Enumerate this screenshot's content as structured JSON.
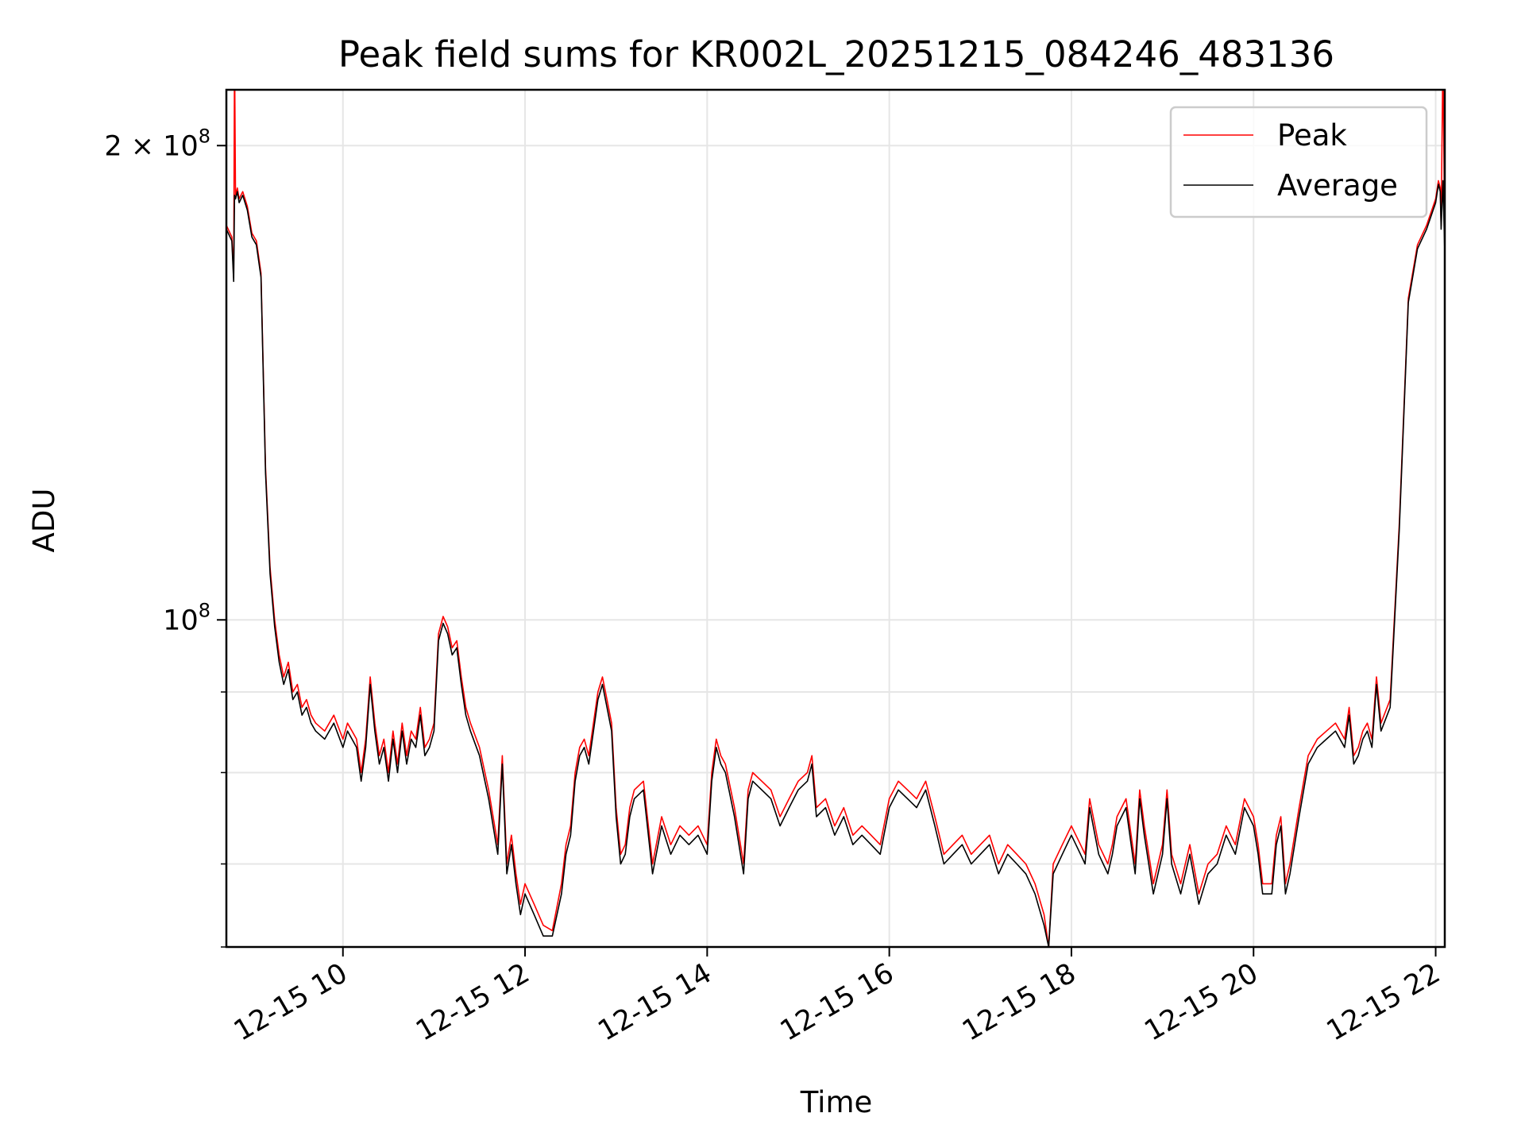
{
  "chart_data": {
    "type": "line",
    "title": "Peak field sums for KR002L_20251215_084246_483136",
    "xlabel": "Time",
    "ylabel": "ADU",
    "x_range": [
      8.72,
      22.1
    ],
    "x_ticks": [
      {
        "value": 10,
        "label": "12-15 10"
      },
      {
        "value": 12,
        "label": "12-15 12"
      },
      {
        "value": 14,
        "label": "12-15 14"
      },
      {
        "value": 16,
        "label": "12-15 16"
      },
      {
        "value": 18,
        "label": "12-15 18"
      },
      {
        "value": 20,
        "label": "12-15 20"
      },
      {
        "value": 22,
        "label": "12-15 22"
      }
    ],
    "y_scale": "log",
    "y_range": [
      62000000,
      217000000
    ],
    "y_major_ticks": [
      {
        "value": 100000000,
        "base": "10",
        "exp": "8",
        "mult": ""
      },
      {
        "value": 200000000,
        "base": "10",
        "exp": "8",
        "mult": "2"
      }
    ],
    "y_minor_ticks": [
      70000000,
      80000000,
      90000000,
      300000000
    ],
    "grid": true,
    "legend_position": "top-right",
    "series": [
      {
        "name": "Peak",
        "color": "#ff0000",
        "x": [
          8.72,
          8.78,
          8.8,
          8.81,
          8.82,
          8.84,
          8.86,
          8.9,
          8.95,
          9.0,
          9.05,
          9.1,
          9.15,
          9.2,
          9.25,
          9.3,
          9.35,
          9.4,
          9.45,
          9.5,
          9.55,
          9.6,
          9.65,
          9.7,
          9.8,
          9.9,
          10.0,
          10.05,
          10.1,
          10.15,
          10.2,
          10.25,
          10.3,
          10.35,
          10.4,
          10.45,
          10.5,
          10.55,
          10.6,
          10.65,
          10.7,
          10.75,
          10.8,
          10.85,
          10.9,
          10.95,
          11.0,
          11.05,
          11.1,
          11.15,
          11.2,
          11.25,
          11.3,
          11.35,
          11.4,
          11.5,
          11.6,
          11.7,
          11.75,
          11.8,
          11.85,
          11.9,
          11.95,
          12.0,
          12.1,
          12.2,
          12.3,
          12.4,
          12.45,
          12.5,
          12.55,
          12.6,
          12.65,
          12.7,
          12.8,
          12.85,
          12.9,
          12.95,
          13.0,
          13.05,
          13.1,
          13.15,
          13.2,
          13.3,
          13.4,
          13.5,
          13.6,
          13.7,
          13.8,
          13.9,
          14.0,
          14.05,
          14.1,
          14.15,
          14.2,
          14.3,
          14.4,
          14.45,
          14.5,
          14.6,
          14.7,
          14.8,
          14.9,
          15.0,
          15.1,
          15.15,
          15.2,
          15.3,
          15.4,
          15.5,
          15.6,
          15.7,
          15.8,
          15.9,
          16.0,
          16.1,
          16.2,
          16.3,
          16.4,
          16.5,
          16.6,
          16.7,
          16.8,
          16.9,
          17.0,
          17.1,
          17.2,
          17.3,
          17.4,
          17.5,
          17.6,
          17.7,
          17.75,
          17.8,
          17.9,
          18.0,
          18.1,
          18.15,
          18.2,
          18.3,
          18.4,
          18.45,
          18.5,
          18.6,
          18.7,
          18.75,
          18.8,
          18.9,
          19.0,
          19.05,
          19.1,
          19.2,
          19.3,
          19.4,
          19.5,
          19.6,
          19.7,
          19.8,
          19.9,
          20.0,
          20.05,
          20.1,
          20.2,
          20.25,
          20.3,
          20.35,
          20.4,
          20.5,
          20.6,
          20.7,
          20.8,
          20.9,
          21.0,
          21.05,
          21.1,
          21.15,
          21.2,
          21.25,
          21.3,
          21.35,
          21.4,
          21.5,
          21.6,
          21.7,
          21.8,
          21.9,
          22.0,
          22.03,
          22.05,
          22.06,
          22.08,
          22.1
        ],
        "y": [
          178000000,
          175000000,
          165000000,
          230000000,
          186000000,
          188000000,
          185000000,
          187000000,
          183000000,
          176000000,
          174000000,
          166000000,
          125000000,
          108000000,
          100000000,
          95000000,
          92000000,
          94000000,
          90000000,
          91000000,
          88000000,
          89000000,
          87000000,
          86000000,
          85000000,
          87000000,
          84000000,
          86000000,
          85000000,
          84000000,
          80000000,
          84000000,
          92000000,
          86000000,
          82000000,
          84000000,
          80000000,
          85000000,
          81000000,
          86000000,
          82000000,
          85000000,
          84000000,
          88000000,
          83000000,
          84000000,
          86000000,
          98000000,
          100500000,
          99000000,
          96000000,
          97000000,
          92000000,
          88000000,
          86000000,
          83000000,
          78000000,
          72000000,
          82000000,
          70000000,
          73000000,
          69000000,
          66000000,
          68000000,
          66000000,
          64000000,
          63500000,
          68000000,
          72000000,
          74000000,
          80000000,
          83000000,
          84000000,
          82000000,
          90000000,
          92000000,
          89000000,
          86000000,
          76000000,
          71000000,
          72000000,
          76000000,
          78000000,
          79000000,
          70000000,
          75000000,
          72000000,
          74000000,
          73000000,
          74000000,
          72000000,
          80000000,
          84000000,
          82000000,
          81000000,
          76000000,
          70000000,
          78000000,
          80000000,
          79000000,
          78000000,
          75000000,
          77000000,
          79000000,
          80000000,
          82000000,
          76000000,
          77000000,
          74000000,
          76000000,
          73000000,
          74000000,
          73000000,
          72000000,
          77000000,
          79000000,
          78000000,
          77000000,
          79000000,
          75000000,
          71000000,
          72000000,
          73000000,
          71000000,
          72000000,
          73000000,
          70000000,
          72000000,
          71000000,
          70000000,
          68000000,
          65000000,
          62000000,
          70000000,
          72000000,
          74000000,
          72000000,
          71000000,
          77000000,
          72000000,
          70000000,
          72000000,
          75000000,
          77000000,
          70000000,
          78000000,
          74000000,
          68000000,
          72000000,
          78000000,
          71000000,
          68000000,
          72000000,
          67000000,
          70000000,
          71000000,
          74000000,
          72000000,
          77000000,
          75000000,
          72000000,
          68000000,
          68000000,
          73000000,
          75000000,
          68000000,
          70000000,
          76000000,
          82000000,
          84000000,
          85000000,
          86000000,
          84000000,
          88000000,
          82000000,
          83000000,
          85000000,
          86000000,
          84000000,
          92000000,
          86000000,
          89000000,
          115000000,
          160000000,
          173000000,
          178000000,
          185000000,
          190000000,
          188000000,
          178000000,
          230000000,
          172000000
        ]
      },
      {
        "name": "Average",
        "color": "#000000",
        "x": [
          8.72,
          8.78,
          8.8,
          8.81,
          8.82,
          8.84,
          8.86,
          8.9,
          8.95,
          9.0,
          9.05,
          9.1,
          9.15,
          9.2,
          9.25,
          9.3,
          9.35,
          9.4,
          9.45,
          9.5,
          9.55,
          9.6,
          9.65,
          9.7,
          9.8,
          9.9,
          10.0,
          10.05,
          10.1,
          10.15,
          10.2,
          10.25,
          10.3,
          10.35,
          10.4,
          10.45,
          10.5,
          10.55,
          10.6,
          10.65,
          10.7,
          10.75,
          10.8,
          10.85,
          10.9,
          10.95,
          11.0,
          11.05,
          11.1,
          11.15,
          11.2,
          11.25,
          11.3,
          11.35,
          11.4,
          11.5,
          11.6,
          11.7,
          11.75,
          11.8,
          11.85,
          11.9,
          11.95,
          12.0,
          12.1,
          12.2,
          12.3,
          12.4,
          12.45,
          12.5,
          12.55,
          12.6,
          12.65,
          12.7,
          12.8,
          12.85,
          12.9,
          12.95,
          13.0,
          13.05,
          13.1,
          13.15,
          13.2,
          13.3,
          13.4,
          13.5,
          13.6,
          13.7,
          13.8,
          13.9,
          14.0,
          14.05,
          14.1,
          14.15,
          14.2,
          14.3,
          14.4,
          14.45,
          14.5,
          14.6,
          14.7,
          14.8,
          14.9,
          15.0,
          15.1,
          15.15,
          15.2,
          15.3,
          15.4,
          15.5,
          15.6,
          15.7,
          15.8,
          15.9,
          16.0,
          16.1,
          16.2,
          16.3,
          16.4,
          16.5,
          16.6,
          16.7,
          16.8,
          16.9,
          17.0,
          17.1,
          17.2,
          17.3,
          17.4,
          17.5,
          17.6,
          17.7,
          17.75,
          17.8,
          17.9,
          18.0,
          18.1,
          18.15,
          18.2,
          18.3,
          18.4,
          18.45,
          18.5,
          18.6,
          18.7,
          18.75,
          18.8,
          18.9,
          19.0,
          19.05,
          19.1,
          19.2,
          19.3,
          19.4,
          19.5,
          19.6,
          19.7,
          19.8,
          19.9,
          20.0,
          20.05,
          20.1,
          20.2,
          20.25,
          20.3,
          20.35,
          20.4,
          20.5,
          20.6,
          20.7,
          20.8,
          20.9,
          21.0,
          21.05,
          21.1,
          21.15,
          21.2,
          21.25,
          21.3,
          21.35,
          21.4,
          21.5,
          21.6,
          21.7,
          21.8,
          21.9,
          22.0,
          22.03,
          22.05,
          22.06,
          22.08,
          22.1
        ],
        "y": [
          177000000,
          174000000,
          164000000,
          186000000,
          185000000,
          187000000,
          184000000,
          186000000,
          182000000,
          175000000,
          173000000,
          165000000,
          124000000,
          107000000,
          99000000,
          94000000,
          91000000,
          93000000,
          89000000,
          90000000,
          87000000,
          88000000,
          86000000,
          85000000,
          84000000,
          86000000,
          83000000,
          85000000,
          84000000,
          83000000,
          79000000,
          83000000,
          91000000,
          85000000,
          81000000,
          83000000,
          79000000,
          84000000,
          80000000,
          85000000,
          81000000,
          84000000,
          83000000,
          87000000,
          82000000,
          83000000,
          85000000,
          97000000,
          99500000,
          98000000,
          95000000,
          96000000,
          91000000,
          87000000,
          85000000,
          82000000,
          77000000,
          71000000,
          81000000,
          69000000,
          72000000,
          68000000,
          65000000,
          67000000,
          65000000,
          63000000,
          63000000,
          67000000,
          71000000,
          73000000,
          79000000,
          82000000,
          83000000,
          81000000,
          89000000,
          91000000,
          88000000,
          85000000,
          75000000,
          70000000,
          71000000,
          75000000,
          77000000,
          78000000,
          69000000,
          74000000,
          71000000,
          73000000,
          72000000,
          73000000,
          71000000,
          79000000,
          83000000,
          81000000,
          80000000,
          75000000,
          69000000,
          77000000,
          79000000,
          78000000,
          77000000,
          74000000,
          76000000,
          78000000,
          79000000,
          81000000,
          75000000,
          76000000,
          73000000,
          75000000,
          72000000,
          73000000,
          72000000,
          71000000,
          76000000,
          78000000,
          77000000,
          76000000,
          78000000,
          74000000,
          70000000,
          71000000,
          72000000,
          70000000,
          71000000,
          72000000,
          69000000,
          71000000,
          70000000,
          69000000,
          67000000,
          64000000,
          62000000,
          69000000,
          71000000,
          73000000,
          71000000,
          70000000,
          76000000,
          71000000,
          69000000,
          71000000,
          74000000,
          76000000,
          69000000,
          77000000,
          73000000,
          67000000,
          71000000,
          77000000,
          70000000,
          67000000,
          71000000,
          66000000,
          69000000,
          70000000,
          73000000,
          71000000,
          76000000,
          74000000,
          71000000,
          67000000,
          67000000,
          72000000,
          74000000,
          67000000,
          69000000,
          75000000,
          81000000,
          83000000,
          84000000,
          85000000,
          83000000,
          87000000,
          81000000,
          82000000,
          84000000,
          85000000,
          83000000,
          91000000,
          85000000,
          88000000,
          114000000,
          159000000,
          172000000,
          177000000,
          184000000,
          189000000,
          187000000,
          177000000,
          190000000,
          171000000
        ]
      }
    ]
  }
}
